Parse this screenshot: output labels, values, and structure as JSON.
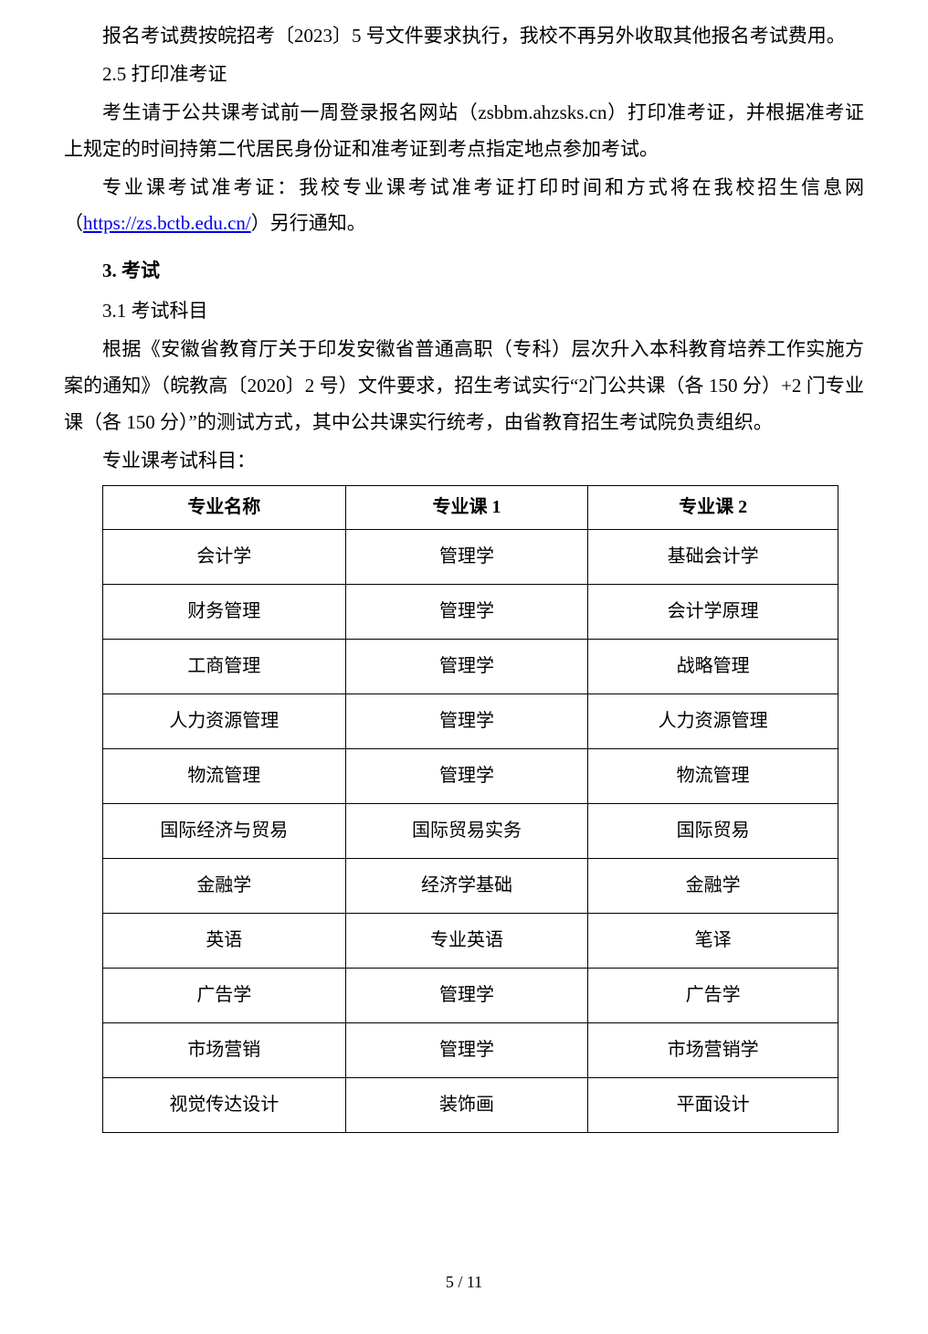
{
  "paragraphs": {
    "p1": "报名考试费按皖招考〔2023〕5 号文件要求执行，我校不再另外收取其他报名考试费用。",
    "s25_title": "2.5 打印准考证",
    "p2": "考生请于公共课考试前一周登录报名网站（zsbbm.ahzsks.cn）打印准考证，并根据准考证上规定的时间持第二代居民身份证和准考证到考点指定地点参加考试。",
    "p3_before": "专业课考试准考证：我校专业课考试准考证打印时间和方式将在我校招生信息网（",
    "p3_link": "https://zs.bctb.edu.cn/",
    "p3_after": "）另行通知。",
    "s3_title": "3. 考试",
    "s31_title": "3.1 考试科目",
    "p4": "根据《安徽省教育厅关于印发安徽省普通高职（专科）层次升入本科教育培养工作实施方案的通知》（皖教高〔2020〕2 号）文件要求，招生考试实行“2门公共课（各 150 分）+2 门专业课（各 150 分）”的测试方式，其中公共课实行统考，由省教育招生考试院负责组织。",
    "table_intro": "专业课考试科目："
  },
  "table": {
    "headers": [
      "专业名称",
      "专业课 1",
      "专业课 2"
    ],
    "rows": [
      [
        "会计学",
        "管理学",
        "基础会计学"
      ],
      [
        "财务管理",
        "管理学",
        "会计学原理"
      ],
      [
        "工商管理",
        "管理学",
        "战略管理"
      ],
      [
        "人力资源管理",
        "管理学",
        "人力资源管理"
      ],
      [
        "物流管理",
        "管理学",
        "物流管理"
      ],
      [
        "国际经济与贸易",
        "国际贸易实务",
        "国际贸易"
      ],
      [
        "金融学",
        "经济学基础",
        "金融学"
      ],
      [
        "英语",
        "专业英语",
        "笔译"
      ],
      [
        "广告学",
        "管理学",
        "广告学"
      ],
      [
        "市场营销",
        "管理学",
        "市场营销学"
      ],
      [
        "视觉传达设计",
        "装饰画",
        "平面设计"
      ]
    ]
  },
  "page_number": "5 / 11"
}
